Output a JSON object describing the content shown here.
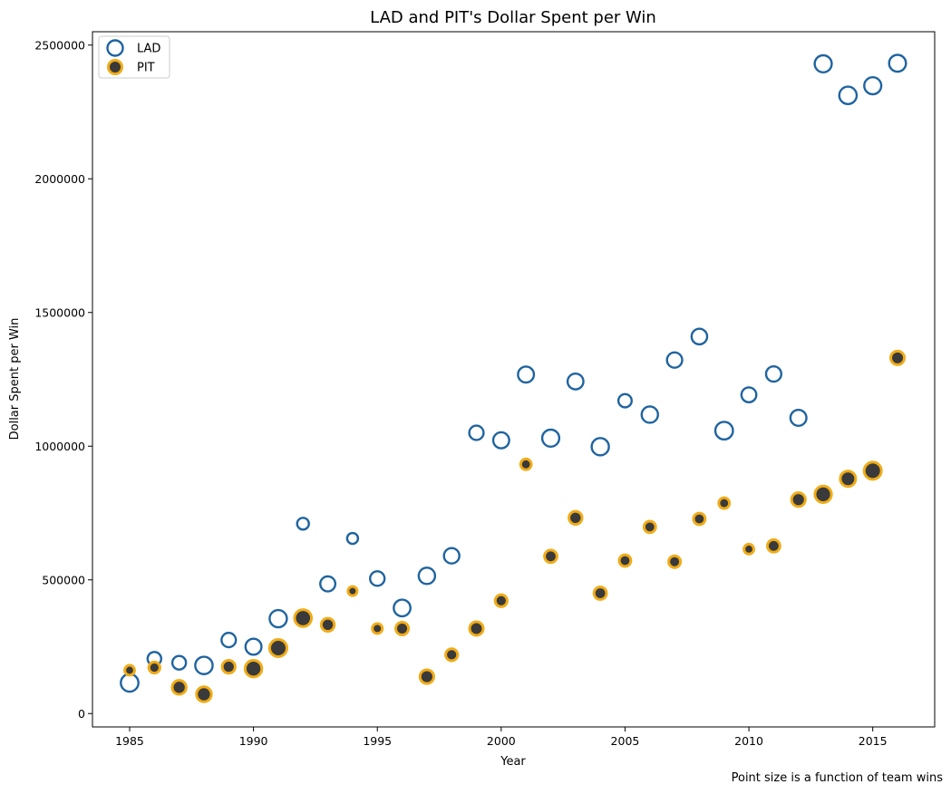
{
  "chart_data": {
    "type": "scatter",
    "title": "LAD and PIT's Dollar Spent per Win",
    "xlabel": "Year",
    "ylabel": "Dollar Spent per Win",
    "caption": "Point size is a function of team wins",
    "xlim": [
      1983.5,
      2017.5
    ],
    "ylim": [
      -50000,
      2550000
    ],
    "xticks": [
      1985,
      1990,
      1995,
      2000,
      2005,
      2010,
      2015
    ],
    "yticks": [
      0,
      500000,
      1000000,
      1500000,
      2000000,
      2500000
    ],
    "grid": false,
    "legend_position": "top-left",
    "series": [
      {
        "name": "LAD",
        "style": "hollow",
        "edge_color": "#1f64a0",
        "face_color": "none",
        "points": [
          {
            "x": 1985,
            "y": 115000,
            "wins": 95
          },
          {
            "x": 1986,
            "y": 205000,
            "wins": 73
          },
          {
            "x": 1987,
            "y": 190000,
            "wins": 73
          },
          {
            "x": 1988,
            "y": 180000,
            "wins": 94
          },
          {
            "x": 1989,
            "y": 275000,
            "wins": 77
          },
          {
            "x": 1990,
            "y": 250000,
            "wins": 86
          },
          {
            "x": 1991,
            "y": 355000,
            "wins": 93
          },
          {
            "x": 1992,
            "y": 710000,
            "wins": 63
          },
          {
            "x": 1993,
            "y": 485000,
            "wins": 81
          },
          {
            "x": 1994,
            "y": 655000,
            "wins": 58
          },
          {
            "x": 1995,
            "y": 505000,
            "wins": 78
          },
          {
            "x": 1996,
            "y": 395000,
            "wins": 90
          },
          {
            "x": 1997,
            "y": 515000,
            "wins": 88
          },
          {
            "x": 1998,
            "y": 590000,
            "wins": 83
          },
          {
            "x": 1999,
            "y": 1050000,
            "wins": 77
          },
          {
            "x": 2000,
            "y": 1022000,
            "wins": 86
          },
          {
            "x": 2001,
            "y": 1268000,
            "wins": 86
          },
          {
            "x": 2002,
            "y": 1030000,
            "wins": 92
          },
          {
            "x": 2003,
            "y": 1242000,
            "wins": 85
          },
          {
            "x": 2004,
            "y": 998000,
            "wins": 93
          },
          {
            "x": 2005,
            "y": 1170000,
            "wins": 71
          },
          {
            "x": 2006,
            "y": 1118000,
            "wins": 88
          },
          {
            "x": 2007,
            "y": 1322000,
            "wins": 82
          },
          {
            "x": 2008,
            "y": 1410000,
            "wins": 84
          },
          {
            "x": 2009,
            "y": 1058000,
            "wins": 95
          },
          {
            "x": 2010,
            "y": 1192000,
            "wins": 80
          },
          {
            "x": 2011,
            "y": 1270000,
            "wins": 82
          },
          {
            "x": 2012,
            "y": 1106000,
            "wins": 86
          },
          {
            "x": 2013,
            "y": 2430000,
            "wins": 92
          },
          {
            "x": 2014,
            "y": 2312000,
            "wins": 94
          },
          {
            "x": 2015,
            "y": 2348000,
            "wins": 92
          },
          {
            "x": 2016,
            "y": 2432000,
            "wins": 91
          }
        ]
      },
      {
        "name": "PIT",
        "style": "filled",
        "edge_color": "#f0ac18",
        "face_color": "#3a3a3a",
        "points": [
          {
            "x": 1985,
            "y": 162000,
            "wins": 57
          },
          {
            "x": 1986,
            "y": 172000,
            "wins": 64
          },
          {
            "x": 1987,
            "y": 98000,
            "wins": 80
          },
          {
            "x": 1988,
            "y": 72000,
            "wins": 85
          },
          {
            "x": 1989,
            "y": 175000,
            "wins": 74
          },
          {
            "x": 1990,
            "y": 168000,
            "wins": 95
          },
          {
            "x": 1991,
            "y": 245000,
            "wins": 98
          },
          {
            "x": 1992,
            "y": 357000,
            "wins": 96
          },
          {
            "x": 1993,
            "y": 332000,
            "wins": 75
          },
          {
            "x": 1994,
            "y": 458000,
            "wins": 53
          },
          {
            "x": 1995,
            "y": 318000,
            "wins": 58
          },
          {
            "x": 1996,
            "y": 318000,
            "wins": 73
          },
          {
            "x": 1997,
            "y": 138000,
            "wins": 79
          },
          {
            "x": 1998,
            "y": 220000,
            "wins": 69
          },
          {
            "x": 1999,
            "y": 318000,
            "wins": 78
          },
          {
            "x": 2000,
            "y": 422000,
            "wins": 69
          },
          {
            "x": 2001,
            "y": 932000,
            "wins": 62
          },
          {
            "x": 2002,
            "y": 588000,
            "wins": 72
          },
          {
            "x": 2003,
            "y": 732000,
            "wins": 75
          },
          {
            "x": 2004,
            "y": 450000,
            "wins": 72
          },
          {
            "x": 2005,
            "y": 572000,
            "wins": 67
          },
          {
            "x": 2006,
            "y": 698000,
            "wins": 67
          },
          {
            "x": 2007,
            "y": 568000,
            "wins": 68
          },
          {
            "x": 2008,
            "y": 728000,
            "wins": 67
          },
          {
            "x": 2009,
            "y": 787000,
            "wins": 62
          },
          {
            "x": 2010,
            "y": 615000,
            "wins": 57
          },
          {
            "x": 2011,
            "y": 627000,
            "wins": 72
          },
          {
            "x": 2012,
            "y": 800000,
            "wins": 79
          },
          {
            "x": 2013,
            "y": 820000,
            "wins": 94
          },
          {
            "x": 2014,
            "y": 878000,
            "wins": 88
          },
          {
            "x": 2015,
            "y": 908000,
            "wins": 98
          },
          {
            "x": 2016,
            "y": 1330000,
            "wins": 78
          }
        ]
      }
    ]
  }
}
